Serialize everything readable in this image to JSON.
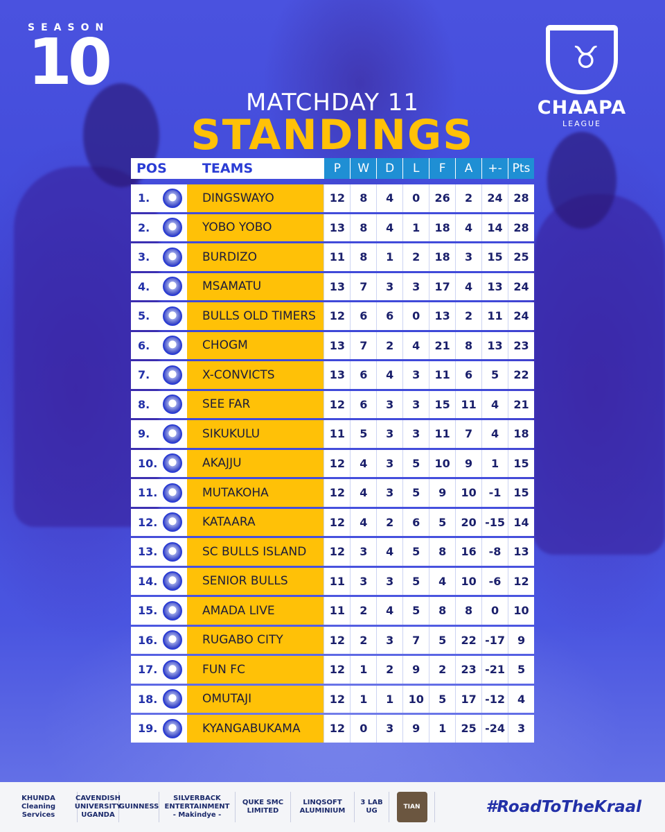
{
  "season": {
    "word": "SEASON",
    "number": "10"
  },
  "logo": {
    "name": "CHAAPA",
    "sub": "LEAGUE",
    "icon": "bull-icon"
  },
  "heading": {
    "matchday": "MATCHDAY 11",
    "title": "STANDINGS"
  },
  "colors": {
    "primary": "#3d49d6",
    "accent": "#ffc107",
    "header_stat": "#1f8fd4"
  },
  "table": {
    "headers": {
      "pos": "POS",
      "teams": "TEAMS",
      "p": "P",
      "w": "W",
      "d": "D",
      "l": "L",
      "f": "F",
      "a": "A",
      "gd": "+-",
      "pts": "Pts"
    },
    "rows": [
      {
        "pos": "1.",
        "team": "DINGSWAYO",
        "p": "12",
        "w": "8",
        "d": "4",
        "l": "0",
        "f": "26",
        "a": "2",
        "gd": "24",
        "pts": "28"
      },
      {
        "pos": "2.",
        "team": "YOBO YOBO",
        "p": "13",
        "w": "8",
        "d": "4",
        "l": "1",
        "f": "18",
        "a": "4",
        "gd": "14",
        "pts": "28"
      },
      {
        "pos": "3.",
        "team": "BURDIZO",
        "p": "11",
        "w": "8",
        "d": "1",
        "l": "2",
        "f": "18",
        "a": "3",
        "gd": "15",
        "pts": "25"
      },
      {
        "pos": "4.",
        "team": "MSAMATU",
        "p": "13",
        "w": "7",
        "d": "3",
        "l": "3",
        "f": "17",
        "a": "4",
        "gd": "13",
        "pts": "24"
      },
      {
        "pos": "5.",
        "team": "BULLS OLD TIMERS",
        "p": "12",
        "w": "6",
        "d": "6",
        "l": "0",
        "f": "13",
        "a": "2",
        "gd": "11",
        "pts": "24"
      },
      {
        "pos": "6.",
        "team": "CHOGM",
        "p": "13",
        "w": "7",
        "d": "2",
        "l": "4",
        "f": "21",
        "a": "8",
        "gd": "13",
        "pts": "23"
      },
      {
        "pos": "7.",
        "team": "X-CONVICTS",
        "p": "13",
        "w": "6",
        "d": "4",
        "l": "3",
        "f": "11",
        "a": "6",
        "gd": "5",
        "pts": "22"
      },
      {
        "pos": "8.",
        "team": "SEE FAR",
        "p": "12",
        "w": "6",
        "d": "3",
        "l": "3",
        "f": "15",
        "a": "11",
        "gd": "4",
        "pts": "21"
      },
      {
        "pos": "9.",
        "team": "SIKUKULU",
        "p": "11",
        "w": "5",
        "d": "3",
        "l": "3",
        "f": "11",
        "a": "7",
        "gd": "4",
        "pts": "18"
      },
      {
        "pos": "10.",
        "team": "AKAJJU",
        "p": "12",
        "w": "4",
        "d": "3",
        "l": "5",
        "f": "10",
        "a": "9",
        "gd": "1",
        "pts": "15"
      },
      {
        "pos": "11.",
        "team": "MUTAKOHA",
        "p": "12",
        "w": "4",
        "d": "3",
        "l": "5",
        "f": "9",
        "a": "10",
        "gd": "-1",
        "pts": "15"
      },
      {
        "pos": "12.",
        "team": "KATAARA",
        "p": "12",
        "w": "4",
        "d": "2",
        "l": "6",
        "f": "5",
        "a": "20",
        "gd": "-15",
        "pts": "14"
      },
      {
        "pos": "13.",
        "team": "SC BULLS ISLAND",
        "p": "12",
        "w": "3",
        "d": "4",
        "l": "5",
        "f": "8",
        "a": "16",
        "gd": "-8",
        "pts": "13"
      },
      {
        "pos": "14.",
        "team": "SENIOR BULLS",
        "p": "11",
        "w": "3",
        "d": "3",
        "l": "5",
        "f": "4",
        "a": "10",
        "gd": "-6",
        "pts": "12"
      },
      {
        "pos": "15.",
        "team": "AMADA LIVE",
        "p": "11",
        "w": "2",
        "d": "4",
        "l": "5",
        "f": "8",
        "a": "8",
        "gd": "0",
        "pts": "10"
      },
      {
        "pos": "16.",
        "team": "RUGABO CITY",
        "p": "12",
        "w": "2",
        "d": "3",
        "l": "7",
        "f": "5",
        "a": "22",
        "gd": "-17",
        "pts": "9"
      },
      {
        "pos": "17.",
        "team": "FUN FC",
        "p": "12",
        "w": "1",
        "d": "2",
        "l": "9",
        "f": "2",
        "a": "23",
        "gd": "-21",
        "pts": "5"
      },
      {
        "pos": "18.",
        "team": "OMUTAJI",
        "p": "12",
        "w": "1",
        "d": "1",
        "l": "10",
        "f": "5",
        "a": "17",
        "gd": "-12",
        "pts": "4"
      },
      {
        "pos": "19.",
        "team": "KYANGABUKAMA",
        "p": "12",
        "w": "0",
        "d": "3",
        "l": "9",
        "f": "1",
        "a": "25",
        "gd": "-24",
        "pts": "3"
      }
    ]
  },
  "footer": {
    "sponsors": [
      "KHUNDA Cleaning Services",
      "CAVENDISH UNIVERSITY UGANDA",
      "GUINNESS",
      "SILVERBACK ENTERTAINMENT - Makindye -",
      "QUKE SMC LIMITED",
      "LINQSOFT ALUMINIUM",
      "3 LAB UG",
      "TIAN"
    ],
    "hashtag": "#RoadToTheKraal"
  }
}
